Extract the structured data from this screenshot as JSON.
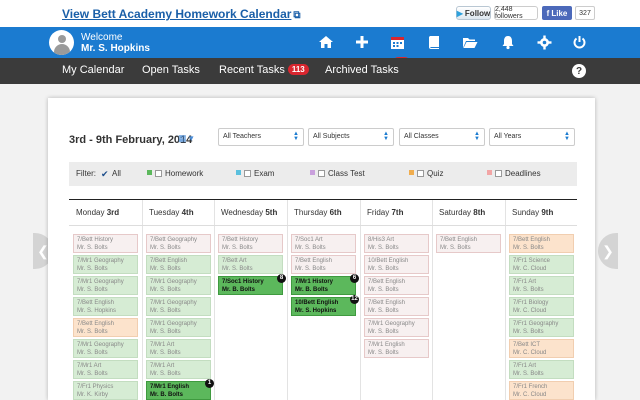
{
  "topbar": {
    "calendar_link": "View Bett Academy Homework Calendar",
    "twitter_follow": "Follow",
    "twitter_count": "2,448 followers",
    "fb_like": "Like",
    "fb_count": "327"
  },
  "header": {
    "welcome": "Welcome",
    "user_name": "Mr. S. Hopkins",
    "tasks_badge": "113",
    "icons": [
      "home-icon",
      "add-icon",
      "calendar-badge-icon",
      "book-icon",
      "folder-icon",
      "bell-icon",
      "gear-icon",
      "power-icon"
    ]
  },
  "nav": {
    "items": [
      "My Calendar",
      "Open Tasks",
      "Recent Tasks",
      "Archived Tasks"
    ],
    "recent_badge": "113"
  },
  "calendar": {
    "week_label": "3rd - 9th February, 2014",
    "selects": [
      "All Teachers",
      "All Subjects",
      "All Classes",
      "All Years"
    ],
    "filter_label": "Filter:",
    "filters": [
      {
        "label": "All",
        "checked": true,
        "color": ""
      },
      {
        "label": "Homework",
        "checked": false,
        "color": "#5cb85c"
      },
      {
        "label": "Exam",
        "checked": false,
        "color": "#5bc0de"
      },
      {
        "label": "Class Test",
        "checked": false,
        "color": "#c9a0dc"
      },
      {
        "label": "Quiz",
        "checked": false,
        "color": "#f0ad4e"
      },
      {
        "label": "Deadlines",
        "checked": false,
        "color": "#f2a5a5"
      }
    ],
    "days": [
      {
        "name": "Monday",
        "date": "3rd"
      },
      {
        "name": "Tuesday",
        "date": "4th"
      },
      {
        "name": "Wednesday",
        "date": "5th"
      },
      {
        "name": "Thursday",
        "date": "6th"
      },
      {
        "name": "Friday",
        "date": "7th"
      },
      {
        "name": "Saturday",
        "date": "8th"
      },
      {
        "name": "Sunday",
        "date": "9th"
      }
    ],
    "events": [
      [
        {
          "title": "7/Bett History",
          "teacher": "Mr. S. Bolts",
          "style": "w"
        },
        {
          "title": "7/Mr1 Geography",
          "teacher": "Mr. S. Bolts",
          "style": "g"
        },
        {
          "title": "7/Mr1 Geography",
          "teacher": "Mr. S. Bolts",
          "style": "g"
        },
        {
          "title": "7/Bett English",
          "teacher": "Mr. S. Hopkins",
          "style": "g"
        },
        {
          "title": "7/Bett English",
          "teacher": "Mr. S. Bolts",
          "style": "o"
        },
        {
          "title": "7/Mr1 Geography",
          "teacher": "Mr. S. Bolts",
          "style": "g"
        },
        {
          "title": "7/Mr1 Art",
          "teacher": "Mr. S. Bolts",
          "style": "g"
        },
        {
          "title": "7/Fr1 Physics",
          "teacher": "Mr. K. Kirby",
          "style": "g"
        }
      ],
      [
        {
          "title": "7/Bett Geography",
          "teacher": "Mr. S. Bolts",
          "style": "w"
        },
        {
          "title": "7/Bett English",
          "teacher": "Mr. S. Bolts",
          "style": "g"
        },
        {
          "title": "7/Mr1 Geography",
          "teacher": "Mr. S. Bolts",
          "style": "g"
        },
        {
          "title": "7/Mr1 Geography",
          "teacher": "Mr. S. Bolts",
          "style": "g"
        },
        {
          "title": "7/Mr1 Geography",
          "teacher": "Mr. S. Bolts",
          "style": "g"
        },
        {
          "title": "7/Mr1 Art",
          "teacher": "Mr. S. Bolts",
          "style": "g"
        },
        {
          "title": "7/Mr1 Art",
          "teacher": "Mr. S. Bolts",
          "style": "g"
        },
        {
          "title": "7/Mr1 English",
          "teacher": "Mr. B. Bolts",
          "style": "gd",
          "badge": "1"
        }
      ],
      [
        {
          "title": "7/Bett History",
          "teacher": "Mr. S. Bolts",
          "style": "w"
        },
        {
          "title": "7/Bett Art",
          "teacher": "Mr. S. Bolts",
          "style": "g"
        },
        {
          "title": "7/Soc1 History",
          "teacher": "Mr. B. Bolts",
          "style": "gd",
          "badge": "8"
        }
      ],
      [
        {
          "title": "7/Soc1 Art",
          "teacher": "Mr. S. Bolts",
          "style": "w"
        },
        {
          "title": "7/Bett English",
          "teacher": "Mr. S. Bolts",
          "style": "w"
        },
        {
          "title": "7/Mr1 History",
          "teacher": "Mr. B. Bolts",
          "style": "gd",
          "badge": "6"
        },
        {
          "title": "10/Bett English",
          "teacher": "Mr. S. Hopkins",
          "style": "gd",
          "badge": "12"
        }
      ],
      [
        {
          "title": "8/His3 Art",
          "teacher": "Mr. S. Bolts",
          "style": "w"
        },
        {
          "title": "10/Bett English",
          "teacher": "Mr. S. Bolts",
          "style": "w"
        },
        {
          "title": "7/Bett English",
          "teacher": "Mr. S. Bolts",
          "style": "w"
        },
        {
          "title": "7/Bett English",
          "teacher": "Mr. S. Bolts",
          "style": "w"
        },
        {
          "title": "7/Mr1 Geography",
          "teacher": "Mr. S. Bolts",
          "style": "w"
        },
        {
          "title": "7/Mr1 English",
          "teacher": "Mr. S. Bolts",
          "style": "w"
        }
      ],
      [
        {
          "title": "7/Bett English",
          "teacher": "Mr. S. Bolts",
          "style": "w"
        }
      ],
      [
        {
          "title": "7/Bett English",
          "teacher": "Mr. S. Bolts",
          "style": "o"
        },
        {
          "title": "7/Fr1 Science",
          "teacher": "Mr. C. Cloud",
          "style": "g"
        },
        {
          "title": "7/Fr1 Art",
          "teacher": "Mr. S. Bolts",
          "style": "g"
        },
        {
          "title": "7/Fr1 Biology",
          "teacher": "Mr. C. Cloud",
          "style": "g"
        },
        {
          "title": "7/Fr1 Geography",
          "teacher": "Mr. S. Bolts",
          "style": "g"
        },
        {
          "title": "7/Bett ICT",
          "teacher": "Mr. C. Cloud",
          "style": "o"
        },
        {
          "title": "7/Fr1 Art",
          "teacher": "Mr. S. Bolts",
          "style": "g"
        },
        {
          "title": "7/Fr1 French",
          "teacher": "Mr. C. Cloud",
          "style": "o"
        }
      ]
    ]
  }
}
